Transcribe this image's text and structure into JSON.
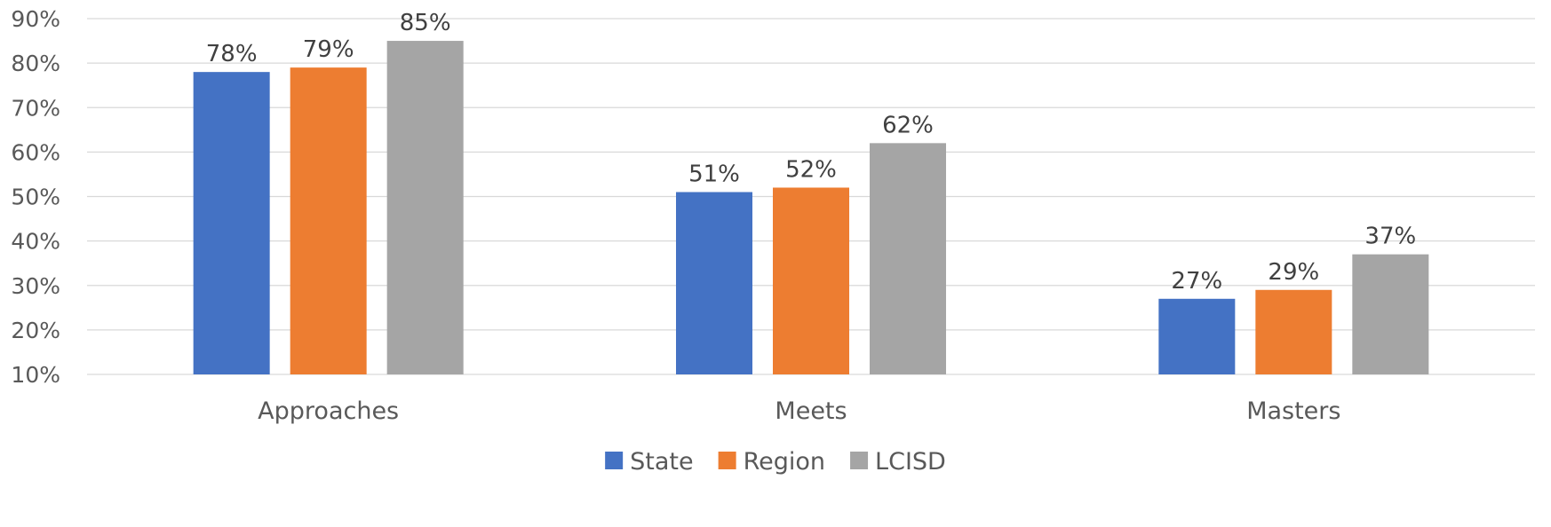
{
  "chart_data": {
    "type": "bar",
    "categories": [
      "Approaches",
      "Meets",
      "Masters"
    ],
    "series": [
      {
        "name": "State",
        "color": "#4472C4",
        "values": [
          78,
          51,
          27
        ]
      },
      {
        "name": "Region",
        "color": "#ED7D31",
        "values": [
          79,
          52,
          29
        ]
      },
      {
        "name": "LCISD",
        "color": "#A5A5A5",
        "values": [
          85,
          62,
          37
        ]
      }
    ],
    "value_format": "{v}%",
    "title": "",
    "xlabel": "",
    "ylabel": "",
    "ylim": [
      10,
      90
    ],
    "yticks": [
      10,
      20,
      30,
      40,
      50,
      60,
      70,
      80,
      90
    ],
    "ytick_labels": [
      "10%",
      "20%",
      "30%",
      "40%",
      "50%",
      "60%",
      "70%",
      "80%",
      "90%"
    ],
    "grid": true,
    "legend_position": "bottom"
  }
}
